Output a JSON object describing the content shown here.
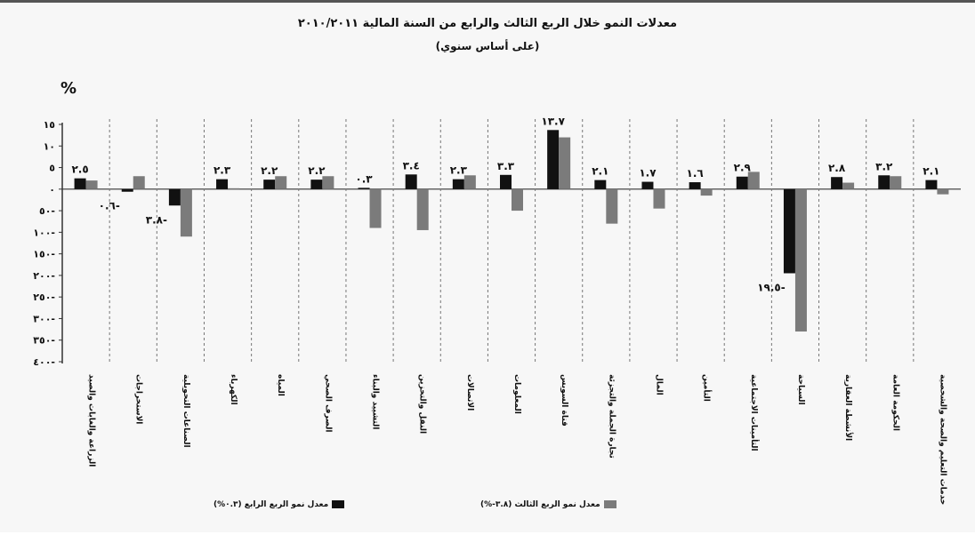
{
  "chart_data": {
    "type": "bar",
    "title": "معدلات النمو خلال الربع الثالث والرابع من السنة المالية ٢٠١٠/٢٠١١",
    "subtitle": "(على أساس سنوي)",
    "unit_label": "%",
    "ylim": [
      -40,
      15
    ],
    "yticks": [
      "١٥",
      "١٠",
      "٥",
      "٠",
      "٥٠-",
      "١٠٠-",
      "١٥٠-",
      "٢٠٠-",
      "٢٥٠-",
      "٣٠٠-",
      "٣٥٠-",
      "٤٠٠-"
    ],
    "grid": "vertical-dashed",
    "legend_position": "bottom",
    "categories": [
      "الزراعة والغابات والصيد",
      "الاستخراجات",
      "الصناعات التحويلية",
      "الكهرباء",
      "المياه",
      "الصرف الصحي",
      "التشييد والبناء",
      "النقل والتخزين",
      "الاتصالات",
      "المعلومات",
      "قناة السويس",
      "تجارة الجملة والتجزئة",
      "المال",
      "التأمين",
      "التأمينات الاجتماعية",
      "السياحة",
      "الأنشطة العقارية",
      "الحكومة العامة",
      "خدمات التعليم والصحة والشخصية"
    ],
    "series": [
      {
        "name": "معدل نمو الربع الرابع (٠.٣%)",
        "color": "#111111",
        "values": [
          2.5,
          -0.6,
          -3.8,
          2.3,
          2.2,
          2.2,
          0.3,
          3.4,
          2.3,
          3.3,
          13.7,
          2.1,
          1.7,
          1.6,
          2.9,
          -19.5,
          2.8,
          3.2,
          2.1
        ],
        "labels": [
          "٢.٥",
          "٠.٦-",
          "٣.٨-",
          "٢.٣",
          "٢.٢",
          "٢.٢",
          "٠.٣",
          "٣.٤",
          "٢.٣",
          "٣.٣",
          "١٣.٧",
          "٢.١",
          "١.٧",
          "١.٦",
          "٢.٩",
          "١٩.٥-",
          "٢.٨",
          "٣.٢",
          "٢.١"
        ]
      },
      {
        "name": "معدل نمو الربع الثالث (٣.٨-%)",
        "color": "#7b7b7b",
        "values": [
          2.0,
          3.0,
          -11.0,
          0.2,
          3.0,
          3.0,
          -9.0,
          -9.5,
          3.2,
          -5.0,
          12.0,
          -8.0,
          -4.5,
          -1.5,
          4.0,
          -33.0,
          1.5,
          3.0,
          -1.2
        ]
      }
    ]
  }
}
